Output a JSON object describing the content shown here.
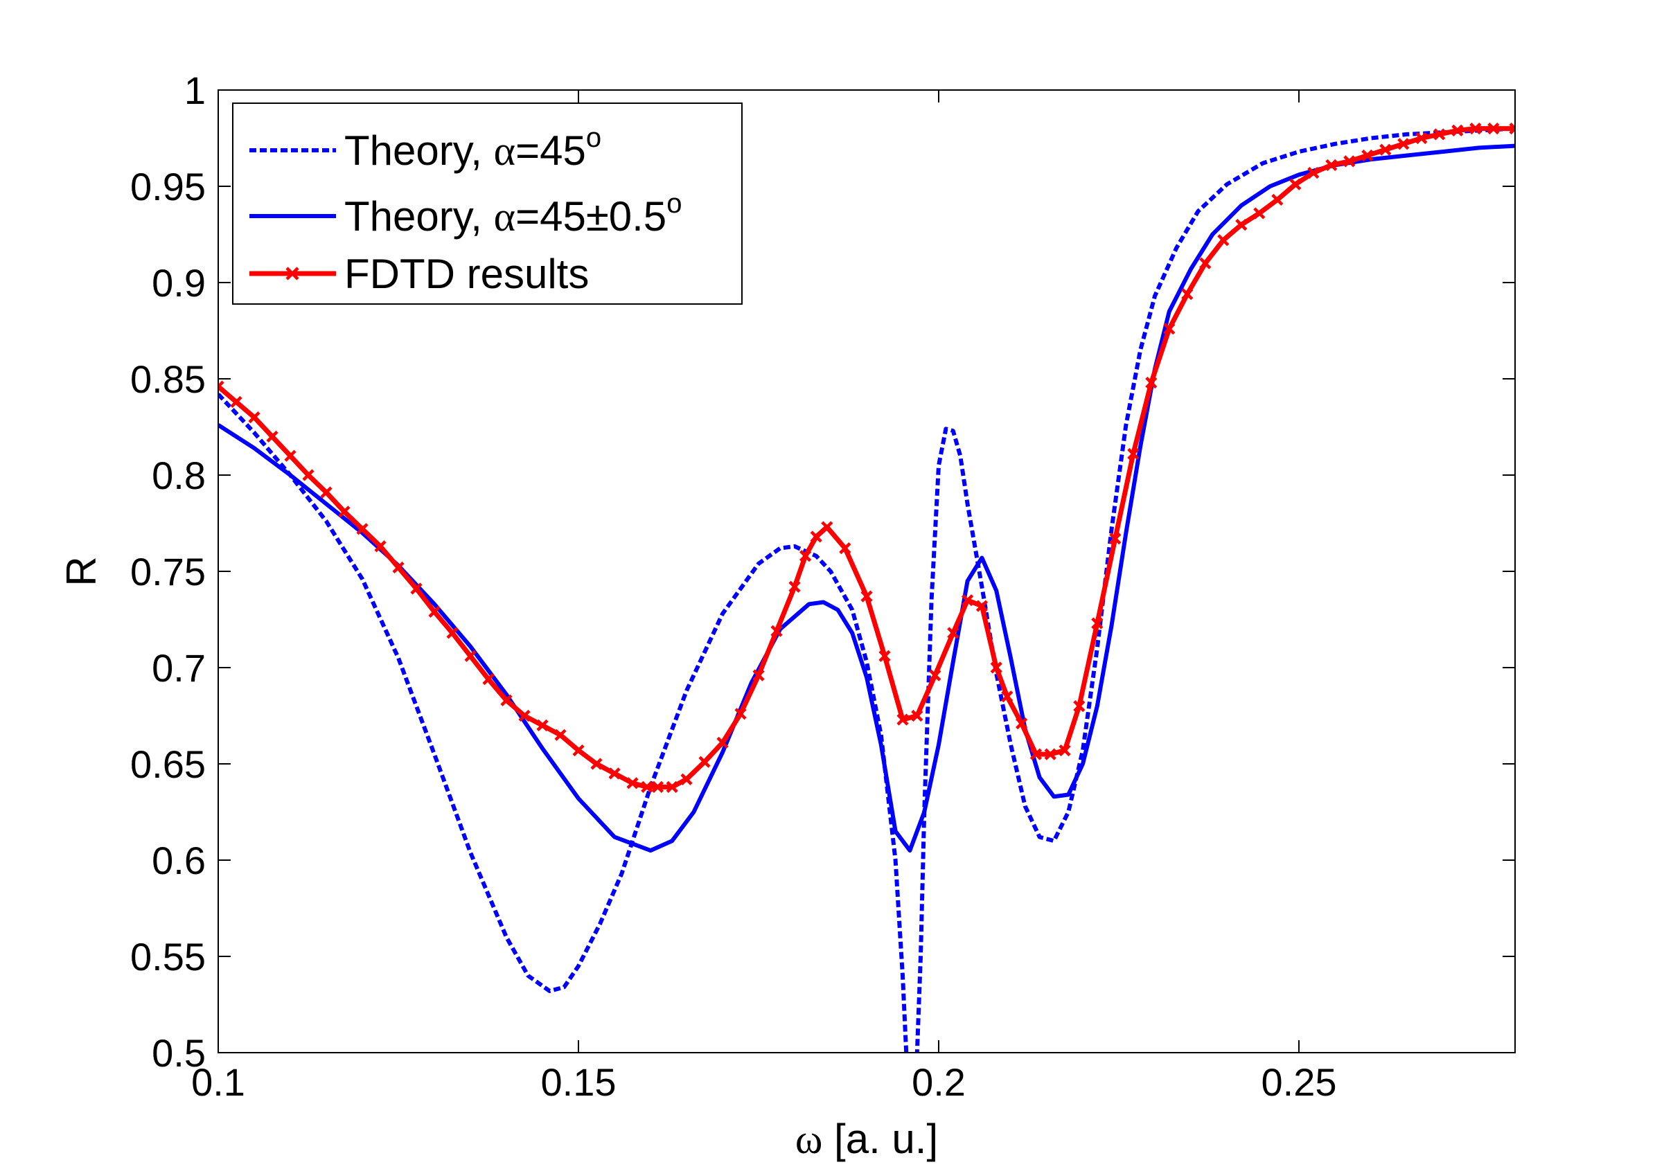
{
  "chart_data": {
    "type": "line",
    "xlabel_symbol": "ω",
    "xlabel_units": " [a. u.]",
    "ylabel": "R",
    "xlim": [
      0.1,
      0.28
    ],
    "ylim": [
      0.5,
      1.0
    ],
    "grid": false,
    "legend_position": "top-left",
    "x_ticks": [
      0.1,
      0.15,
      0.2,
      0.25
    ],
    "x_tick_labels": [
      "0.1",
      "0.15",
      "0.2",
      "0.25"
    ],
    "y_ticks": [
      0.5,
      0.55,
      0.6,
      0.65,
      0.7,
      0.75,
      0.8,
      0.85,
      0.9,
      0.95,
      1.0
    ],
    "y_tick_labels": [
      "0.5",
      "0.55",
      "0.6",
      "0.65",
      "0.7",
      "0.75",
      "0.8",
      "0.85",
      "0.9",
      "0.95",
      "1"
    ],
    "series": [
      {
        "name": "Theory, α=45o",
        "legend": {
          "main": "Theory, ",
          "greek": "α",
          "rest": "=45",
          "sup": "o"
        },
        "color": "#0000ff",
        "style": "dashed",
        "marker": "none",
        "x": [
          0.1,
          0.105,
          0.11,
          0.115,
          0.12,
          0.125,
          0.13,
          0.135,
          0.14,
          0.143,
          0.146,
          0.148,
          0.15,
          0.153,
          0.156,
          0.16,
          0.165,
          0.17,
          0.175,
          0.178,
          0.18,
          0.183,
          0.185,
          0.188,
          0.19,
          0.192,
          0.194,
          0.195,
          0.1955,
          0.196,
          0.1965,
          0.197,
          0.1975,
          0.198,
          0.199,
          0.2,
          0.201,
          0.202,
          0.203,
          0.204,
          0.206,
          0.208,
          0.21,
          0.212,
          0.214,
          0.216,
          0.218,
          0.22,
          0.222,
          0.224,
          0.226,
          0.228,
          0.23,
          0.233,
          0.236,
          0.24,
          0.245,
          0.25,
          0.255,
          0.26,
          0.265,
          0.27,
          0.275,
          0.28
        ],
        "y": [
          0.842,
          0.822,
          0.8,
          0.776,
          0.746,
          0.705,
          0.655,
          0.604,
          0.56,
          0.54,
          0.532,
          0.534,
          0.545,
          0.567,
          0.593,
          0.638,
          0.688,
          0.728,
          0.754,
          0.762,
          0.763,
          0.758,
          0.75,
          0.73,
          0.703,
          0.665,
          0.6,
          0.54,
          0.5,
          0.49,
          0.488,
          0.5,
          0.55,
          0.625,
          0.735,
          0.805,
          0.824,
          0.823,
          0.81,
          0.785,
          0.742,
          0.697,
          0.66,
          0.628,
          0.612,
          0.61,
          0.625,
          0.657,
          0.71,
          0.772,
          0.826,
          0.865,
          0.893,
          0.918,
          0.937,
          0.951,
          0.962,
          0.968,
          0.972,
          0.975,
          0.977,
          0.978,
          0.979,
          0.98
        ]
      },
      {
        "name": "Theory, α=45±0.5o",
        "legend": {
          "main": "Theory, ",
          "greek": "α",
          "rest": "=45±0.5",
          "sup": "o"
        },
        "color": "#0000ff",
        "style": "solid",
        "marker": "none",
        "x": [
          0.1,
          0.105,
          0.11,
          0.115,
          0.12,
          0.125,
          0.13,
          0.135,
          0.14,
          0.145,
          0.15,
          0.155,
          0.16,
          0.163,
          0.166,
          0.17,
          0.174,
          0.178,
          0.182,
          0.184,
          0.186,
          0.188,
          0.19,
          0.192,
          0.194,
          0.196,
          0.198,
          0.2,
          0.202,
          0.204,
          0.206,
          0.208,
          0.21,
          0.212,
          0.214,
          0.216,
          0.218,
          0.22,
          0.222,
          0.224,
          0.226,
          0.228,
          0.23,
          0.232,
          0.235,
          0.238,
          0.242,
          0.246,
          0.25,
          0.255,
          0.26,
          0.265,
          0.27,
          0.275,
          0.28
        ],
        "y": [
          0.826,
          0.814,
          0.8,
          0.785,
          0.77,
          0.753,
          0.733,
          0.711,
          0.686,
          0.658,
          0.632,
          0.612,
          0.605,
          0.61,
          0.625,
          0.656,
          0.692,
          0.72,
          0.733,
          0.734,
          0.73,
          0.718,
          0.695,
          0.66,
          0.615,
          0.605,
          0.625,
          0.66,
          0.703,
          0.745,
          0.757,
          0.74,
          0.705,
          0.668,
          0.643,
          0.633,
          0.634,
          0.65,
          0.68,
          0.722,
          0.77,
          0.815,
          0.855,
          0.885,
          0.907,
          0.925,
          0.94,
          0.95,
          0.956,
          0.961,
          0.964,
          0.966,
          0.968,
          0.97,
          0.971
        ]
      },
      {
        "name": "FDTD results",
        "legend": {
          "main": "FDTD results",
          "greek": "",
          "rest": "",
          "sup": ""
        },
        "color": "#ff0000",
        "style": "solid",
        "marker": "x",
        "x": [
          0.1,
          0.1025,
          0.105,
          0.1075,
          0.11,
          0.1125,
          0.115,
          0.1175,
          0.12,
          0.1225,
          0.125,
          0.1275,
          0.13,
          0.1325,
          0.135,
          0.1375,
          0.14,
          0.1425,
          0.145,
          0.1475,
          0.15,
          0.1525,
          0.155,
          0.1575,
          0.1595,
          0.161,
          0.163,
          0.165,
          0.1675,
          0.17,
          0.1725,
          0.175,
          0.1775,
          0.18,
          0.1815,
          0.183,
          0.1845,
          0.187,
          0.19,
          0.1925,
          0.195,
          0.197,
          0.1995,
          0.202,
          0.204,
          0.206,
          0.208,
          0.2095,
          0.2115,
          0.2135,
          0.2155,
          0.2175,
          0.2195,
          0.222,
          0.2245,
          0.227,
          0.2295,
          0.232,
          0.2345,
          0.237,
          0.2395,
          0.242,
          0.2445,
          0.247,
          0.2495,
          0.252,
          0.2545,
          0.257,
          0.2595,
          0.262,
          0.2645,
          0.267,
          0.2695,
          0.272,
          0.2745,
          0.277,
          0.28
        ],
        "y": [
          0.846,
          0.838,
          0.83,
          0.82,
          0.81,
          0.8,
          0.791,
          0.781,
          0.772,
          0.763,
          0.752,
          0.741,
          0.729,
          0.718,
          0.706,
          0.694,
          0.683,
          0.675,
          0.67,
          0.665,
          0.657,
          0.65,
          0.645,
          0.64,
          0.638,
          0.638,
          0.638,
          0.642,
          0.651,
          0.661,
          0.676,
          0.696,
          0.719,
          0.742,
          0.758,
          0.768,
          0.773,
          0.762,
          0.737,
          0.706,
          0.673,
          0.675,
          0.696,
          0.718,
          0.735,
          0.732,
          0.7,
          0.685,
          0.671,
          0.655,
          0.655,
          0.657,
          0.68,
          0.723,
          0.767,
          0.811,
          0.848,
          0.876,
          0.894,
          0.91,
          0.922,
          0.93,
          0.936,
          0.943,
          0.951,
          0.957,
          0.961,
          0.963,
          0.966,
          0.969,
          0.972,
          0.975,
          0.977,
          0.979,
          0.98,
          0.98,
          0.98
        ]
      }
    ]
  }
}
